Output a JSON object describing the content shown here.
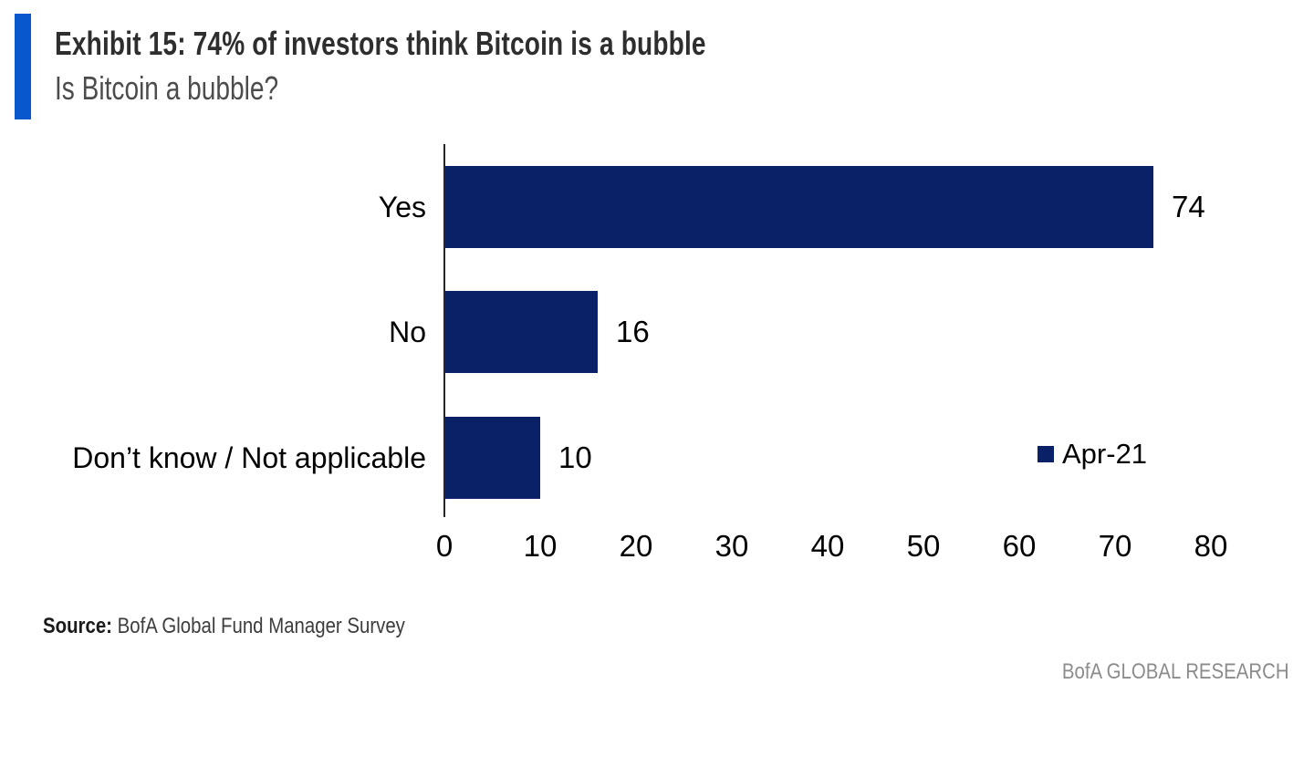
{
  "header": {
    "title": "Exhibit 15: 74% of investors think Bitcoin is a bubble",
    "subtitle": "Is Bitcoin a bubble?"
  },
  "chart_data": {
    "type": "bar",
    "orientation": "horizontal",
    "title": "Is Bitcoin a bubble?",
    "categories": [
      "Yes",
      "No",
      "Don’t know / Not applicable"
    ],
    "series": [
      {
        "name": "Apr-21",
        "values": [
          74,
          16,
          10
        ]
      }
    ],
    "data_labels": [
      "74",
      "16",
      "10"
    ],
    "xticks": [
      0,
      10,
      20,
      30,
      40,
      50,
      60,
      70,
      80
    ],
    "xlim": [
      0,
      80
    ],
    "grid": false,
    "legend_position": "middle-right"
  },
  "footer": {
    "source_label": "Source:",
    "source_text": "BofA Global Fund Manager Survey",
    "brand_text": "BofA GLOBAL RESEARCH"
  },
  "colors": {
    "accent_bar": "#0857CC",
    "bar_navy": "#0A2168",
    "title_text": "#2e2e2e",
    "subtitle_text": "#4c4c4c",
    "brand_text": "#8c8c8c"
  }
}
